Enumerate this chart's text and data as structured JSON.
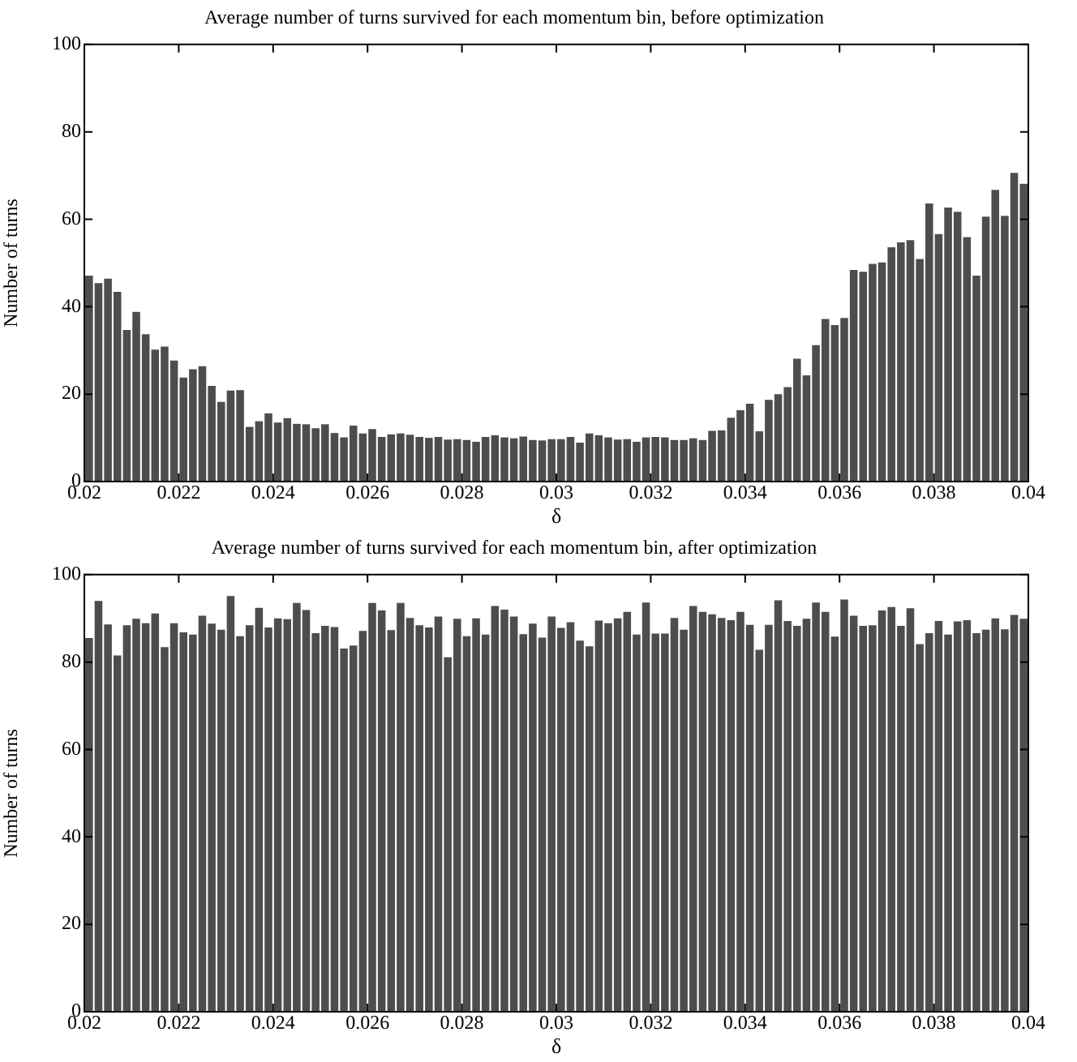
{
  "chart_data": [
    {
      "type": "histogram",
      "title": "Average number of turns survived for each momentum bin, before optimization",
      "xlabel": "δ",
      "ylabel": "Number of turns",
      "color": "#4d4d4d",
      "bins": [
        0.02,
        0.0202,
        0.0204,
        0.0206,
        0.0208,
        0.021,
        0.0212,
        0.0214,
        0.0216,
        0.0218,
        0.022,
        0.0222,
        0.0224,
        0.0226,
        0.0228,
        0.023,
        0.0232,
        0.0234,
        0.0236,
        0.0238,
        0.024,
        0.0242,
        0.0244,
        0.0246,
        0.0248,
        0.025,
        0.0252,
        0.0254,
        0.0256,
        0.0258,
        0.026,
        0.0262,
        0.0264,
        0.0266,
        0.0268,
        0.027,
        0.0272,
        0.0274,
        0.0276,
        0.0278,
        0.028,
        0.0282,
        0.0284,
        0.0286,
        0.0288,
        0.029,
        0.0292,
        0.0294,
        0.0296,
        0.0298,
        0.03,
        0.0302,
        0.0304,
        0.0306,
        0.0308,
        0.031,
        0.0312,
        0.0314,
        0.0316,
        0.0318,
        0.032,
        0.0322,
        0.0324,
        0.0326,
        0.0328,
        0.033,
        0.0332,
        0.0334,
        0.0336,
        0.0338,
        0.034,
        0.0342,
        0.0344,
        0.0346,
        0.0348,
        0.035,
        0.0352,
        0.0354,
        0.0356,
        0.0358,
        0.036,
        0.0362,
        0.0364,
        0.0366,
        0.0368,
        0.037,
        0.0372,
        0.0374,
        0.0376,
        0.0378,
        0.038,
        0.0382,
        0.0384,
        0.0386,
        0.0388,
        0.039,
        0.0392,
        0.0394,
        0.0396,
        0.0398,
        0.04
      ],
      "values": [
        47.1,
        45.4,
        46.4,
        43.4,
        34.7,
        38.8,
        33.7,
        30.2,
        30.9,
        27.7,
        23.8,
        25.7,
        26.4,
        21.9,
        18.2,
        20.8,
        20.9,
        12.5,
        13.8,
        15.6,
        13.5,
        14.5,
        13.2,
        13.1,
        12.2,
        13.1,
        11.1,
        10.1,
        12.8,
        11.0,
        12.0,
        10.2,
        10.8,
        11.0,
        10.7,
        10.2,
        10.0,
        10.2,
        9.6,
        9.7,
        9.5,
        9.1,
        10.2,
        10.6,
        10.1,
        9.9,
        10.3,
        9.5,
        9.4,
        9.7,
        9.7,
        10.2,
        8.9,
        11.0,
        10.6,
        10.1,
        9.6,
        9.7,
        9.1,
        10.1,
        10.2,
        10.1,
        9.5,
        9.5,
        9.9,
        9.5,
        11.6,
        11.7,
        14.6,
        16.3,
        17.8,
        11.5,
        18.7,
        20.0,
        21.6,
        28.1,
        24.3,
        31.2,
        37.2,
        35.8,
        37.4,
        48.4,
        48.0,
        49.8,
        50.1,
        53.6,
        54.7,
        55.2,
        50.9,
        63.6,
        56.6,
        62.7,
        61.7,
        55.9,
        47.1,
        60.6,
        66.7,
        60.8,
        70.6,
        68.1
      ],
      "xlim": [
        0.02,
        0.04
      ],
      "ylim": [
        0,
        100
      ],
      "xticks": [
        0.02,
        0.022,
        0.024,
        0.026,
        0.028,
        0.03,
        0.032,
        0.034,
        0.036,
        0.038,
        0.04
      ],
      "yticks": [
        0,
        20,
        40,
        60,
        80,
        100
      ]
    },
    {
      "type": "histogram",
      "title": "Average number of turns survived for each momentum bin, after optimization",
      "xlabel": "δ",
      "ylabel": "Number of turns",
      "color": "#4d4d4d",
      "bins": [
        0.02,
        0.0202,
        0.0204,
        0.0206,
        0.0208,
        0.021,
        0.0212,
        0.0214,
        0.0216,
        0.0218,
        0.022,
        0.0222,
        0.0224,
        0.0226,
        0.0228,
        0.023,
        0.0232,
        0.0234,
        0.0236,
        0.0238,
        0.024,
        0.0242,
        0.0244,
        0.0246,
        0.0248,
        0.025,
        0.0252,
        0.0254,
        0.0256,
        0.0258,
        0.026,
        0.0262,
        0.0264,
        0.0266,
        0.0268,
        0.027,
        0.0272,
        0.0274,
        0.0276,
        0.0278,
        0.028,
        0.0282,
        0.0284,
        0.0286,
        0.0288,
        0.029,
        0.0292,
        0.0294,
        0.0296,
        0.0298,
        0.03,
        0.0302,
        0.0304,
        0.0306,
        0.0308,
        0.031,
        0.0312,
        0.0314,
        0.0316,
        0.0318,
        0.032,
        0.0322,
        0.0324,
        0.0326,
        0.0328,
        0.033,
        0.0332,
        0.0334,
        0.0336,
        0.0338,
        0.034,
        0.0342,
        0.0344,
        0.0346,
        0.0348,
        0.035,
        0.0352,
        0.0354,
        0.0356,
        0.0358,
        0.036,
        0.0362,
        0.0364,
        0.0366,
        0.0368,
        0.037,
        0.0372,
        0.0374,
        0.0376,
        0.0378,
        0.038,
        0.0382,
        0.0384,
        0.0386,
        0.0388,
        0.039,
        0.0392,
        0.0394,
        0.0396,
        0.0398,
        0.04
      ],
      "values": [
        85.5,
        94.0,
        88.6,
        81.5,
        88.4,
        89.9,
        88.9,
        91.1,
        83.4,
        88.9,
        86.8,
        86.3,
        90.6,
        88.8,
        87.4,
        95.1,
        85.9,
        88.4,
        92.4,
        87.9,
        90.0,
        89.8,
        93.5,
        91.9,
        86.6,
        88.3,
        88.0,
        83.1,
        83.8,
        87.1,
        93.5,
        91.8,
        87.3,
        93.5,
        90.1,
        88.4,
        87.9,
        90.4,
        81.1,
        89.9,
        85.9,
        90.0,
        86.3,
        92.8,
        92.0,
        90.4,
        86.4,
        88.8,
        85.6,
        90.4,
        87.8,
        89.1,
        84.9,
        83.6,
        89.5,
        88.9,
        90.0,
        91.5,
        86.3,
        93.6,
        86.5,
        86.5,
        90.1,
        87.4,
        92.8,
        91.5,
        90.9,
        90.1,
        89.6,
        91.5,
        88.5,
        82.8,
        88.5,
        94.1,
        89.4,
        88.3,
        89.9,
        93.6,
        91.5,
        85.8,
        94.3,
        90.6,
        88.3,
        88.4,
        91.8,
        92.6,
        88.3,
        92.3,
        84.1,
        86.6,
        89.4,
        86.3,
        89.3,
        89.6,
        86.6,
        87.4,
        90.0,
        87.5,
        90.8,
        89.9
      ],
      "xlim": [
        0.02,
        0.04
      ],
      "ylim": [
        0,
        100
      ],
      "xticks": [
        0.02,
        0.022,
        0.024,
        0.026,
        0.028,
        0.03,
        0.032,
        0.034,
        0.036,
        0.038,
        0.04
      ],
      "yticks": [
        0,
        20,
        40,
        60,
        80,
        100
      ]
    }
  ]
}
